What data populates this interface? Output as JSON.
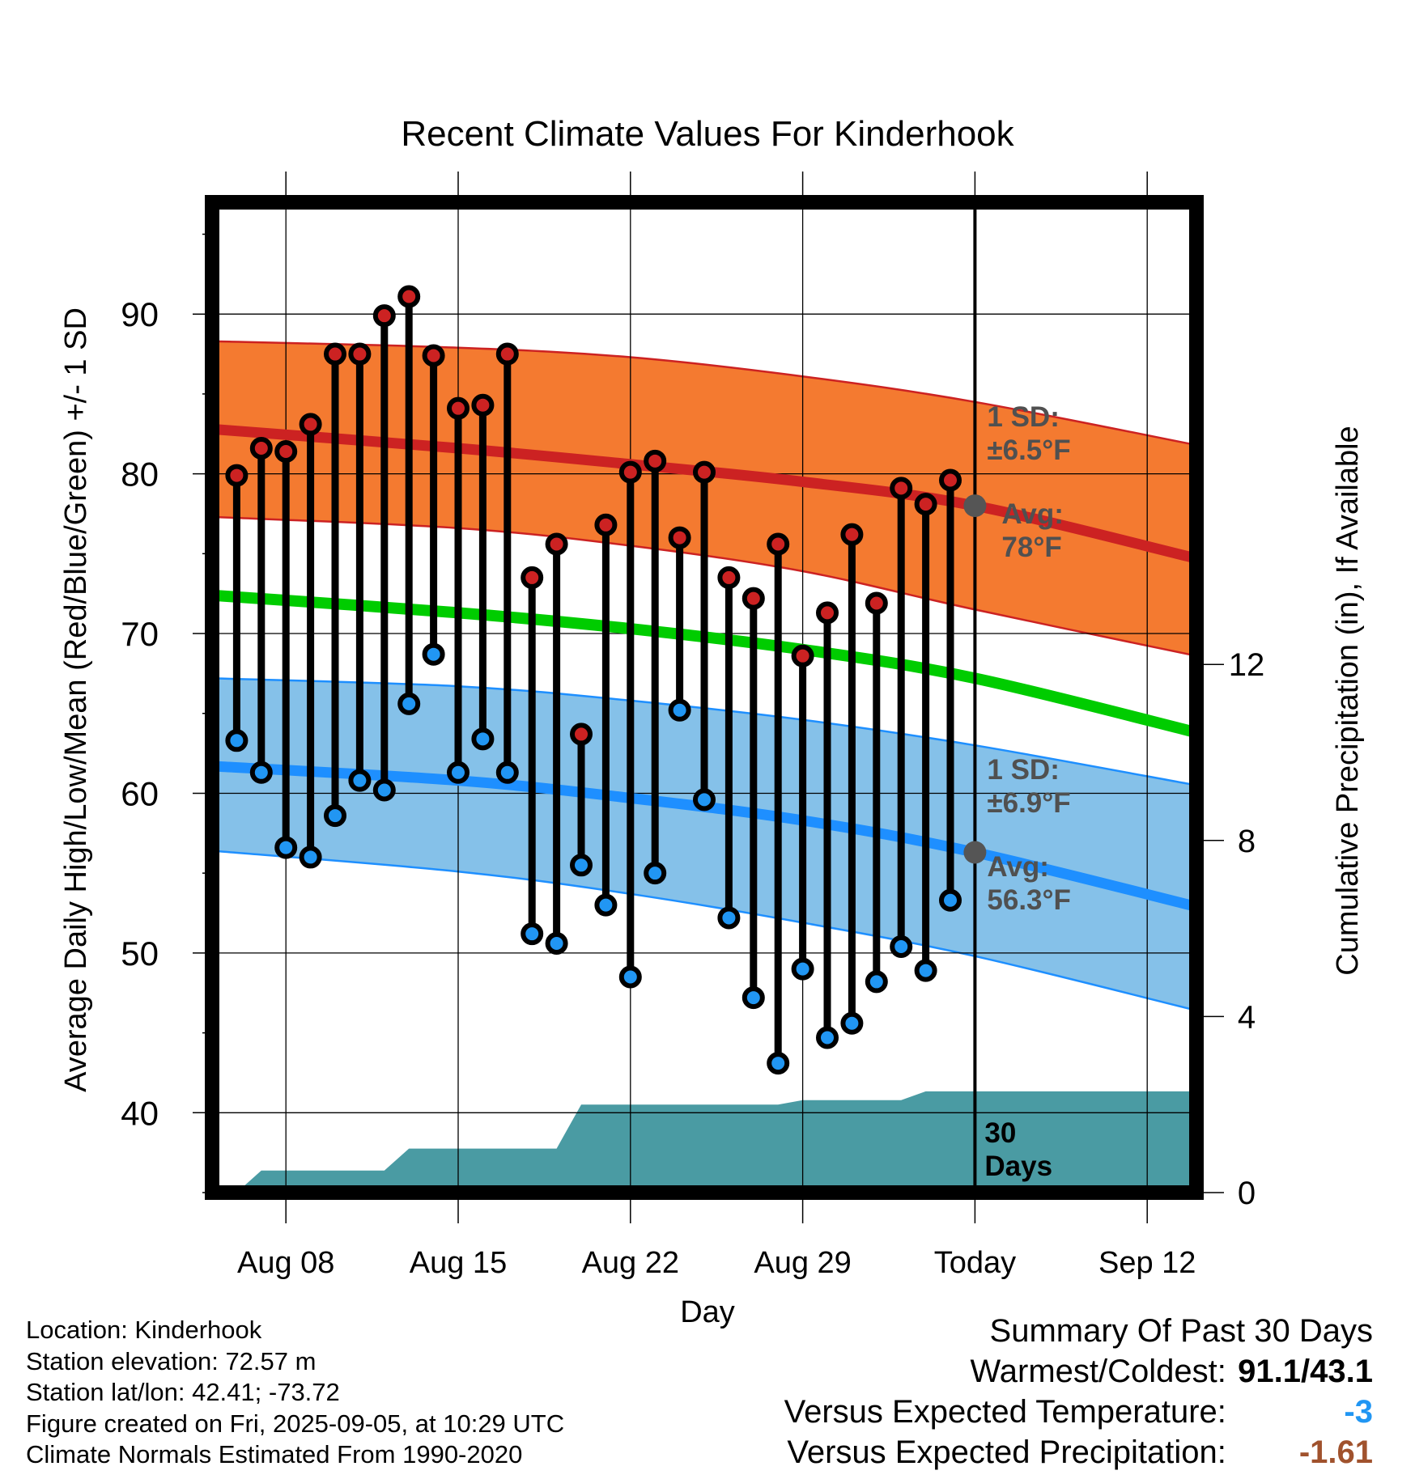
{
  "chart_data": {
    "type": "line",
    "title": "Recent Climate Values For Kinderhook",
    "xlabel": "Day",
    "ylabel": "Average Daily High/Low/Mean (Red/Blue/Green) +/- 1 SD",
    "y2label": "Cumulative Precipitation (in), If Available",
    "x_ticks": [
      "Aug 08",
      "Aug 15",
      "Aug 22",
      "Aug 29",
      "Today",
      "Sep 12"
    ],
    "x_tick_dates": [
      "2025-08-08",
      "2025-08-15",
      "2025-08-22",
      "2025-08-29",
      "2025-09-05",
      "2025-09-12"
    ],
    "x_range": [
      "2025-08-05",
      "2025-09-14"
    ],
    "today": "2025-09-05",
    "ylim": [
      35,
      97
    ],
    "y_ticks": [
      40,
      50,
      60,
      70,
      80,
      90
    ],
    "y2lim": [
      0,
      22.5
    ],
    "y2_ticks": [
      0,
      4,
      8,
      12
    ],
    "grid": true,
    "colors": {
      "high": "#cc2222",
      "high_band": "#f47a30",
      "low": "#1e8fff",
      "low_band": "#85c1e9",
      "mean": "#00cc00",
      "precip": "#4a9ba3",
      "high_marker": "#cc2222",
      "low_marker": "#2196f3",
      "avg_marker": "#555555",
      "annotation_text": "#505050"
    },
    "normal_high": {
      "x": [
        "2025-08-05",
        "2025-08-15",
        "2025-08-22",
        "2025-08-29",
        "2025-09-05",
        "2025-09-14"
      ],
      "mean": [
        82.8,
        81.6,
        80.6,
        79.5,
        78.0,
        74.7
      ],
      "upper": [
        88.3,
        87.9,
        87.3,
        86.1,
        84.5,
        81.8
      ],
      "lower": [
        77.3,
        76.6,
        75.5,
        73.9,
        71.5,
        68.6
      ]
    },
    "normal_low": {
      "x": [
        "2025-08-05",
        "2025-08-15",
        "2025-08-22",
        "2025-08-29",
        "2025-09-05",
        "2025-09-14"
      ],
      "mean": [
        61.7,
        60.8,
        59.7,
        58.3,
        56.3,
        52.9
      ],
      "upper": [
        67.2,
        66.7,
        65.8,
        64.6,
        63.0,
        60.5
      ],
      "lower": [
        56.4,
        55.1,
        53.7,
        51.9,
        49.8,
        46.4
      ]
    },
    "normal_mean": {
      "x": [
        "2025-08-05",
        "2025-08-15",
        "2025-08-22",
        "2025-08-29",
        "2025-09-05",
        "2025-09-14"
      ],
      "values": [
        72.4,
        71.3,
        70.3,
        69.0,
        67.2,
        63.8
      ]
    },
    "daily": {
      "dates": [
        "2025-08-06",
        "2025-08-07",
        "2025-08-08",
        "2025-08-09",
        "2025-08-10",
        "2025-08-11",
        "2025-08-12",
        "2025-08-13",
        "2025-08-14",
        "2025-08-15",
        "2025-08-16",
        "2025-08-17",
        "2025-08-18",
        "2025-08-19",
        "2025-08-20",
        "2025-08-21",
        "2025-08-22",
        "2025-08-23",
        "2025-08-24",
        "2025-08-25",
        "2025-08-26",
        "2025-08-27",
        "2025-08-28",
        "2025-08-29",
        "2025-08-30",
        "2025-08-31",
        "2025-09-01",
        "2025-09-02",
        "2025-09-03",
        "2025-09-04"
      ],
      "high": [
        79.9,
        81.6,
        81.4,
        83.1,
        87.5,
        87.5,
        89.9,
        91.1,
        87.4,
        84.1,
        84.3,
        87.5,
        73.5,
        75.6,
        63.7,
        76.8,
        80.1,
        80.8,
        76.0,
        80.1,
        73.5,
        72.2,
        75.6,
        68.6,
        71.3,
        76.2,
        71.9,
        79.1,
        78.1,
        79.6
      ],
      "low": [
        63.3,
        61.3,
        56.6,
        56.0,
        58.6,
        60.8,
        60.2,
        65.6,
        68.7,
        61.3,
        63.4,
        61.3,
        51.2,
        50.6,
        55.5,
        53.0,
        48.5,
        55.0,
        65.2,
        59.6,
        52.2,
        47.2,
        43.1,
        49.0,
        44.7,
        45.6,
        48.2,
        50.4,
        48.9,
        53.3
      ]
    },
    "precip": {
      "dates": [
        "2025-08-06",
        "2025-08-07",
        "2025-08-12",
        "2025-08-13",
        "2025-08-19",
        "2025-08-20",
        "2025-08-28",
        "2025-08-29",
        "2025-09-02",
        "2025-09-03",
        "2025-09-14"
      ],
      "values": [
        0.0,
        0.5,
        0.5,
        1.0,
        1.0,
        2.0,
        2.0,
        2.1,
        2.1,
        2.3,
        2.3
      ]
    },
    "annotations": {
      "high_sd": [
        "1 SD:",
        "±6.5°F"
      ],
      "high_avg": [
        "Avg:",
        "78°F"
      ],
      "low_sd": [
        "1 SD:",
        "±6.9°F"
      ],
      "low_avg": [
        "Avg:",
        "56.3°F"
      ],
      "precip_days": [
        "30",
        "Days"
      ]
    }
  },
  "footer": {
    "location": "Location: Kinderhook",
    "elevation": "Station elevation: 72.57 m",
    "latlon": "Station lat/lon: 42.41; -73.72",
    "created": "Figure created on Fri, 2025-09-05, at 10:29 UTC",
    "normals": "Climate Normals Estimated From 1990-2020"
  },
  "summary": {
    "title": "Summary Of Past 30 Days",
    "warm_cold_label": "Warmest/Coldest:",
    "warm_cold_value": "91.1/43.1",
    "temp_label": "Versus Expected Temperature:",
    "temp_value": "-3",
    "temp_color": "#2196f3",
    "precip_label": "Versus Expected Precipitation:",
    "precip_value": "-1.61",
    "precip_color": "#a0522d"
  }
}
